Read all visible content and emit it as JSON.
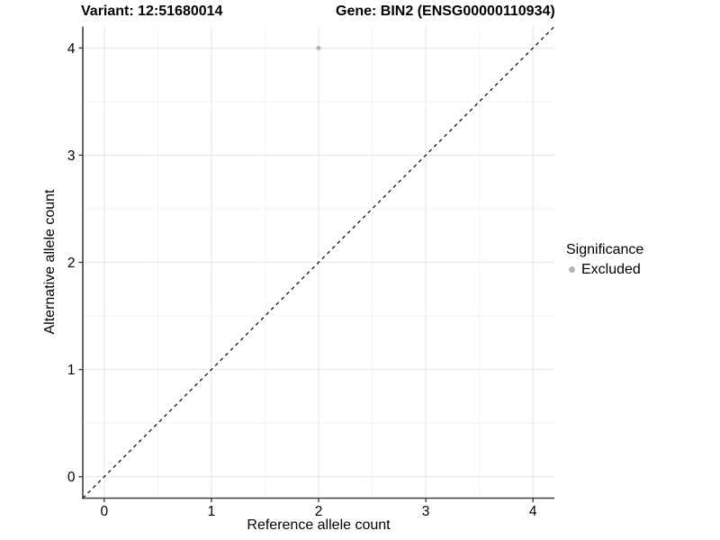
{
  "titles": {
    "left": "Variant: 12:51680014",
    "right": "Gene: BIN2 (ENSG00000110934)"
  },
  "axes": {
    "x_label": "Reference allele count",
    "y_label": "Alternative allele count"
  },
  "legend": {
    "title": "Significance",
    "items": [
      {
        "label": "Excluded",
        "color": "#b5b5b5"
      }
    ]
  },
  "chart_data": {
    "type": "scatter",
    "title": "Variant: 12:51680014 — Gene: BIN2 (ENSG00000110934)",
    "xlabel": "Reference allele count",
    "ylabel": "Alternative allele count",
    "xlim": [
      -0.2,
      4.2
    ],
    "ylim": [
      -0.2,
      4.2
    ],
    "xticks": [
      0,
      1,
      2,
      3,
      4
    ],
    "yticks": [
      0,
      1,
      2,
      3,
      4
    ],
    "grid": "major and minor gridlines on white background",
    "legend_position": "right",
    "series": [
      {
        "name": "Excluded",
        "color": "#b5b5b5",
        "points": [
          {
            "x": 2,
            "y": 4
          }
        ]
      }
    ],
    "reference_line": {
      "type": "identity y=x",
      "style": "dashed",
      "color": "#000000"
    }
  },
  "colors": {
    "background": "#ffffff",
    "grid_major": "#e4e4e4",
    "grid_minor": "#f2f2f2",
    "axis_line": "#404040",
    "text": "#000000",
    "excluded_point": "#b5b5b5"
  }
}
